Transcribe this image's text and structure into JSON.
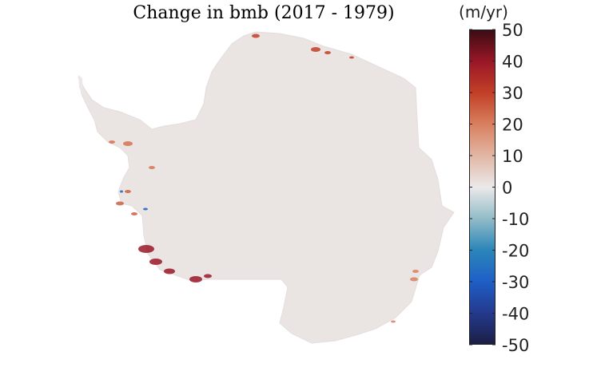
{
  "chart_data": {
    "type": "heatmap",
    "title": "Change in bmb (2017 - 1979)",
    "colorbar": {
      "unit_label": "(m/yr)",
      "range": [
        -50,
        50
      ],
      "ticks": [
        50,
        40,
        30,
        20,
        10,
        0,
        -10,
        -20,
        -30,
        -40,
        -50
      ],
      "tick_labels": [
        "50",
        "40",
        "30",
        "20",
        "10",
        "0",
        "-10",
        "-20",
        "-30",
        "-40",
        "-50"
      ],
      "colormap_stops": [
        {
          "value": -50,
          "color": "#1b1f45"
        },
        {
          "value": -40,
          "color": "#243a8e"
        },
        {
          "value": -30,
          "color": "#1e5fc7"
        },
        {
          "value": -20,
          "color": "#2b86b8"
        },
        {
          "value": -10,
          "color": "#92bcc8"
        },
        {
          "value": 0,
          "color": "#ebe9ea"
        },
        {
          "value": 10,
          "color": "#e2b6a5"
        },
        {
          "value": 20,
          "color": "#d8805f"
        },
        {
          "value": 30,
          "color": "#c24027"
        },
        {
          "value": 40,
          "color": "#9a1727"
        },
        {
          "value": 50,
          "color": "#3b0c14"
        }
      ]
    },
    "map": {
      "region": "Antarctica",
      "background_value": 1,
      "hotspots": [
        {
          "name": "amundsen-sea-coast",
          "value": 40
        },
        {
          "name": "bellingshausen-coast",
          "value": 25
        },
        {
          "name": "antarctic-peninsula-west",
          "value": 22
        },
        {
          "name": "east-antarctica-north-coast",
          "value": 30
        },
        {
          "name": "wilkes-land-coast",
          "value": 20
        },
        {
          "name": "totten-coast",
          "value": -30
        }
      ]
    }
  }
}
